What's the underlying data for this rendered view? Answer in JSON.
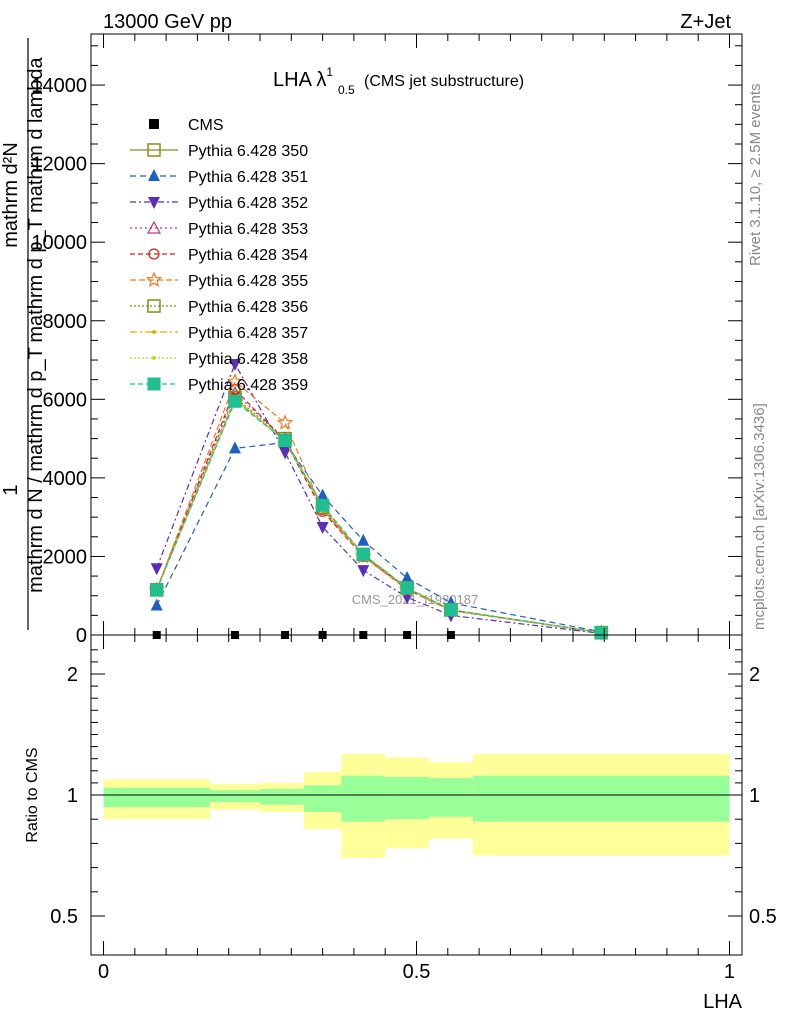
{
  "header": {
    "energy_label": "13000 GeV pp",
    "process_label": "Z+Jet"
  },
  "side": {
    "rivet_label": "Rivet 3.1.10, ≥ 2.5M events",
    "mcplots_label": "mcplots.cern.ch [arXiv:1306.3436]"
  },
  "watermark": "CMS_2021_I1920187",
  "chart_data": [
    {
      "type": "line",
      "title": {
        "main": "LHA λ",
        "sup": "1",
        "sub": "0.5",
        "rest": " (CMS jet substructure)"
      },
      "ylabel": {
        "numer": "1",
        "denom": "mathrm d N / mathrm d p_T mathrm d p_T mathrm d lambda",
        "top": "mathrm d²N",
        "mid": "mathrm d p_T mathrm d lambda"
      },
      "ylabel_parts": {
        "upper_line1": "mathrm d²N",
        "upper_line2": "mathrm d p_T mathrm d lambda",
        "lower_line1": "1",
        "lower_line2": "mathrm d N / mathrm d p_T"
      },
      "ylim": [
        0,
        15300
      ],
      "xlim": [
        -0.02,
        1.02
      ],
      "yticks": [
        0,
        2000,
        4000,
        6000,
        8000,
        10000,
        12000,
        14000
      ],
      "ytick_labels": [
        "0",
        "2000",
        "4000",
        "6000",
        "8000",
        "10000",
        "12000",
        "14000"
      ],
      "x": [
        0.085,
        0.21,
        0.29,
        0.35,
        0.415,
        0.485,
        0.555,
        0.795
      ],
      "series": [
        {
          "name": "CMS",
          "color": "#000000",
          "marker": "square-filled",
          "dash": "none",
          "values": [
            0,
            0,
            0,
            0,
            0,
            0,
            0,
            0
          ]
        },
        {
          "name": "Pythia 6.428 350",
          "color": "#8b8b1a",
          "marker": "square-open",
          "dash": "solid",
          "values": [
            1150,
            6000,
            4950,
            3250,
            2050,
            1200,
            640,
            60
          ]
        },
        {
          "name": "Pythia 6.428 351",
          "color": "#1f5fbf",
          "marker": "triangle-up-filled",
          "dash": "6,4",
          "values": [
            750,
            4750,
            4900,
            3550,
            2400,
            1450,
            820,
            80
          ]
        },
        {
          "name": "Pythia 6.428 352",
          "color": "#5a2eb5",
          "marker": "triangle-down-filled",
          "dash": "6,3,2,3",
          "values": [
            1700,
            6900,
            4650,
            2750,
            1650,
            960,
            500,
            40
          ]
        },
        {
          "name": "Pythia 6.428 353",
          "color": "#c0337f",
          "marker": "triangle-up-open",
          "dash": "2,3",
          "values": [
            1150,
            6150,
            5000,
            3200,
            2050,
            1200,
            640,
            60
          ]
        },
        {
          "name": "Pythia 6.428 354",
          "color": "#d42020",
          "marker": "circle-open",
          "dash": "5,3",
          "values": [
            1150,
            6250,
            4950,
            3150,
            2000,
            1180,
            630,
            60
          ]
        },
        {
          "name": "Pythia 6.428 355",
          "color": "#f07a20",
          "marker": "star-open",
          "dash": "6,3",
          "values": [
            1150,
            6450,
            5400,
            3200,
            2000,
            1150,
            620,
            55
          ]
        },
        {
          "name": "Pythia 6.428 356",
          "color": "#7c8f1a",
          "marker": "square-open",
          "dash": "2,2",
          "values": [
            1150,
            6050,
            5000,
            3250,
            2050,
            1200,
            640,
            60
          ]
        },
        {
          "name": "Pythia 6.428 357",
          "color": "#d4b500",
          "marker": "dot-small",
          "dash": "7,3,2,3",
          "values": [
            1150,
            6000,
            4950,
            3250,
            2050,
            1200,
            640,
            60
          ]
        },
        {
          "name": "Pythia 6.428 358",
          "color": "#c8d630",
          "marker": "dot-small",
          "dash": "2,2",
          "values": [
            1150,
            6000,
            4950,
            3250,
            2050,
            1200,
            640,
            60
          ]
        },
        {
          "name": "Pythia 6.428 359",
          "color": "#1fbf8f",
          "marker": "square-filled",
          "dash": "5,3",
          "values": [
            1150,
            5950,
            4950,
            3300,
            2050,
            1200,
            640,
            60
          ]
        }
      ],
      "legend_placement": "top-left"
    },
    {
      "type": "area",
      "ylabel": "Ratio to CMS",
      "xlabel": "LHA",
      "ylim": [
        0.4,
        2.3
      ],
      "xlim": [
        -0.02,
        1.02
      ],
      "yticks": [
        0.5,
        1,
        2
      ],
      "ytick_labels": [
        "0.5",
        "1",
        "2"
      ],
      "xticks": [
        0,
        0.5,
        1
      ],
      "xtick_labels": [
        "0",
        "0.5",
        "1"
      ],
      "bins": [
        [
          0.0,
          0.17
        ],
        [
          0.17,
          0.25
        ],
        [
          0.25,
          0.32
        ],
        [
          0.32,
          0.38
        ],
        [
          0.38,
          0.45
        ],
        [
          0.45,
          0.52
        ],
        [
          0.52,
          0.59
        ],
        [
          0.59,
          1.0
        ]
      ],
      "green_band": [
        [
          0.95,
          1.06
        ],
        [
          0.97,
          1.04
        ],
        [
          0.96,
          1.05
        ],
        [
          0.93,
          1.08
        ],
        [
          0.89,
          1.16
        ],
        [
          0.9,
          1.15
        ],
        [
          0.91,
          1.14
        ],
        [
          0.89,
          1.16
        ]
      ],
      "yellow_band": [
        [
          0.9,
          1.13
        ],
        [
          0.94,
          1.09
        ],
        [
          0.93,
          1.1
        ],
        [
          0.86,
          1.19
        ],
        [
          0.74,
          1.34
        ],
        [
          0.78,
          1.31
        ],
        [
          0.82,
          1.27
        ],
        [
          0.75,
          1.34
        ]
      ],
      "band_colors": {
        "green": "#99ff99",
        "yellow": "#ffff99"
      }
    }
  ]
}
